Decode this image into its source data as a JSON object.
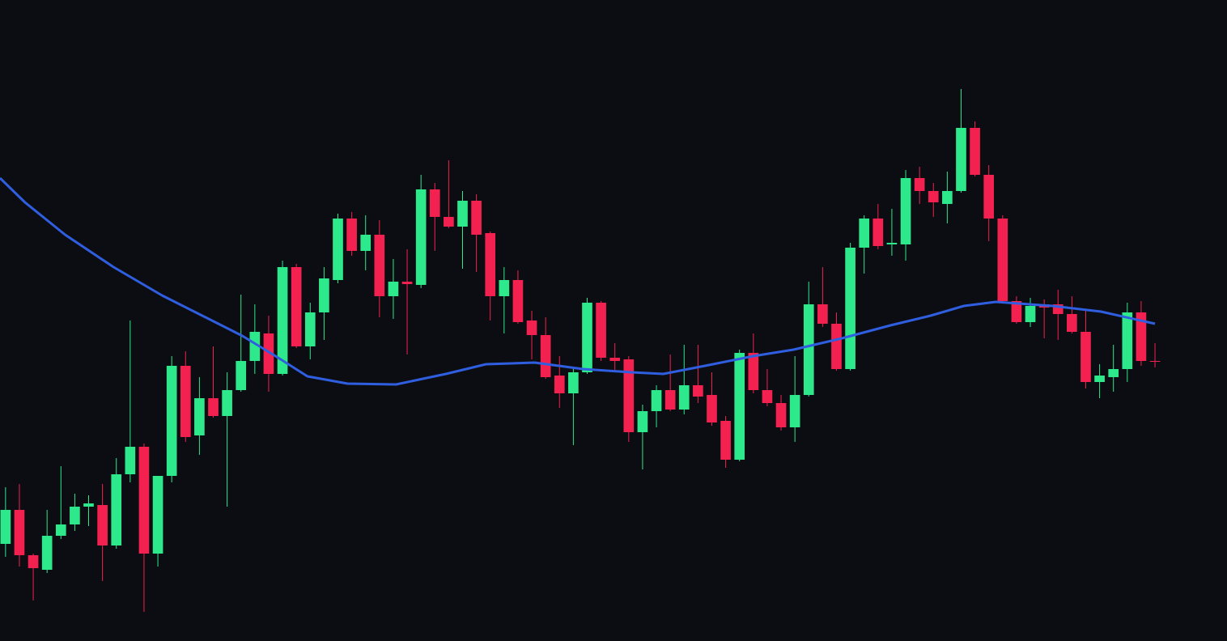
{
  "chart_data": {
    "type": "candlestick",
    "up_color": "#2ee88c",
    "down_color": "#f2214f",
    "xlim": [
      -0.4,
      88.2
    ],
    "ylim": [
      0,
      792
    ],
    "x": [
      0,
      1,
      2,
      3,
      4,
      5,
      6,
      7,
      8,
      9,
      10,
      11,
      12,
      13,
      14,
      15,
      16,
      17,
      18,
      19,
      20,
      21,
      22,
      23,
      24,
      25,
      26,
      27,
      28,
      29,
      30,
      31,
      32,
      33,
      34,
      35,
      36,
      37,
      38,
      39,
      40,
      41,
      42,
      43,
      44,
      45,
      46,
      47,
      48,
      49,
      50,
      51,
      52,
      53,
      54,
      55,
      56,
      57,
      58,
      59,
      60,
      61,
      62,
      63,
      64,
      65,
      66,
      67,
      68,
      69,
      70,
      71,
      72,
      73,
      74,
      75,
      76,
      77,
      78,
      79,
      80,
      81,
      82,
      83
    ],
    "open": [
      120,
      162,
      106,
      88,
      130,
      144,
      166,
      168,
      118,
      206,
      240,
      108,
      204,
      340,
      254,
      300,
      278,
      310,
      346,
      380,
      330,
      462,
      364,
      406,
      446,
      522,
      482,
      502,
      426,
      444,
      440,
      558,
      524,
      512,
      544,
      504,
      426,
      446,
      396,
      378,
      328,
      306,
      332,
      418,
      350,
      348,
      258,
      284,
      310,
      286,
      316,
      304,
      272,
      224,
      356,
      310,
      294,
      264,
      304,
      416,
      392,
      336,
      486,
      522,
      490,
      490,
      572,
      556,
      540,
      556,
      634,
      576,
      522,
      420,
      394,
      416,
      416,
      404,
      382,
      320,
      326,
      336,
      406,
      346
    ],
    "high": [
      190,
      194,
      108,
      162,
      216,
      182,
      180,
      194,
      226,
      396,
      244,
      204,
      352,
      358,
      326,
      364,
      332,
      428,
      416,
      402,
      470,
      466,
      418,
      462,
      528,
      530,
      526,
      520,
      472,
      484,
      576,
      566,
      594,
      556,
      552,
      506,
      462,
      458,
      408,
      400,
      352,
      336,
      424,
      420,
      368,
      352,
      292,
      316,
      354,
      366,
      366,
      332,
      278,
      360,
      380,
      336,
      304,
      352,
      444,
      462,
      406,
      492,
      526,
      540,
      534,
      582,
      586,
      566,
      580,
      682,
      642,
      588,
      526,
      426,
      424,
      422,
      434,
      426,
      410,
      342,
      366,
      418,
      420,
      368
    ],
    "low": [
      104,
      92,
      50,
      84,
      126,
      136,
      142,
      74,
      114,
      196,
      36,
      92,
      196,
      246,
      230,
      276,
      166,
      308,
      330,
      308,
      328,
      362,
      348,
      372,
      442,
      476,
      458,
      400,
      398,
      354,
      436,
      482,
      510,
      460,
      456,
      396,
      380,
      392,
      348,
      324,
      288,
      242,
      330,
      346,
      332,
      246,
      212,
      264,
      284,
      280,
      294,
      266,
      214,
      222,
      306,
      290,
      260,
      246,
      302,
      388,
      334,
      334,
      454,
      484,
      476,
      470,
      540,
      524,
      516,
      554,
      574,
      494,
      418,
      392,
      388,
      374,
      372,
      380,
      312,
      300,
      308,
      320,
      340,
      338
    ],
    "close": [
      162,
      106,
      90,
      130,
      144,
      166,
      170,
      118,
      206,
      240,
      108,
      204,
      340,
      252,
      300,
      278,
      310,
      346,
      382,
      330,
      462,
      364,
      406,
      448,
      522,
      482,
      502,
      426,
      444,
      441,
      558,
      524,
      512,
      544,
      502,
      426,
      446,
      394,
      378,
      326,
      306,
      332,
      418,
      350,
      346,
      258,
      284,
      310,
      286,
      316,
      302,
      270,
      224,
      356,
      310,
      294,
      264,
      304,
      416,
      392,
      336,
      486,
      522,
      488,
      492,
      572,
      556,
      542,
      556,
      634,
      576,
      522,
      420,
      394,
      414,
      412,
      404,
      382,
      320,
      328,
      336,
      406,
      346,
      345
    ],
    "moving_average": {
      "type": "line",
      "color": "#2f5fe0",
      "x": [
        -0.4,
        1.4,
        4.3,
        7.8,
        11.3,
        14.2,
        17.1,
        19.5,
        21.8,
        24.7,
        28.2,
        31.8,
        34.7,
        38.2,
        41.7,
        45.2,
        47.5,
        50.5,
        54.0,
        56.9,
        60.4,
        63.9,
        66.8,
        69.2,
        71.5,
        75.6,
        79.1,
        83.0
      ],
      "values": [
        572,
        542,
        502,
        462,
        427,
        402,
        377,
        352,
        327,
        318,
        317,
        330,
        342,
        344,
        336,
        332,
        330,
        340,
        352,
        360,
        374,
        390,
        402,
        414,
        419,
        414,
        407,
        392
      ]
    }
  }
}
